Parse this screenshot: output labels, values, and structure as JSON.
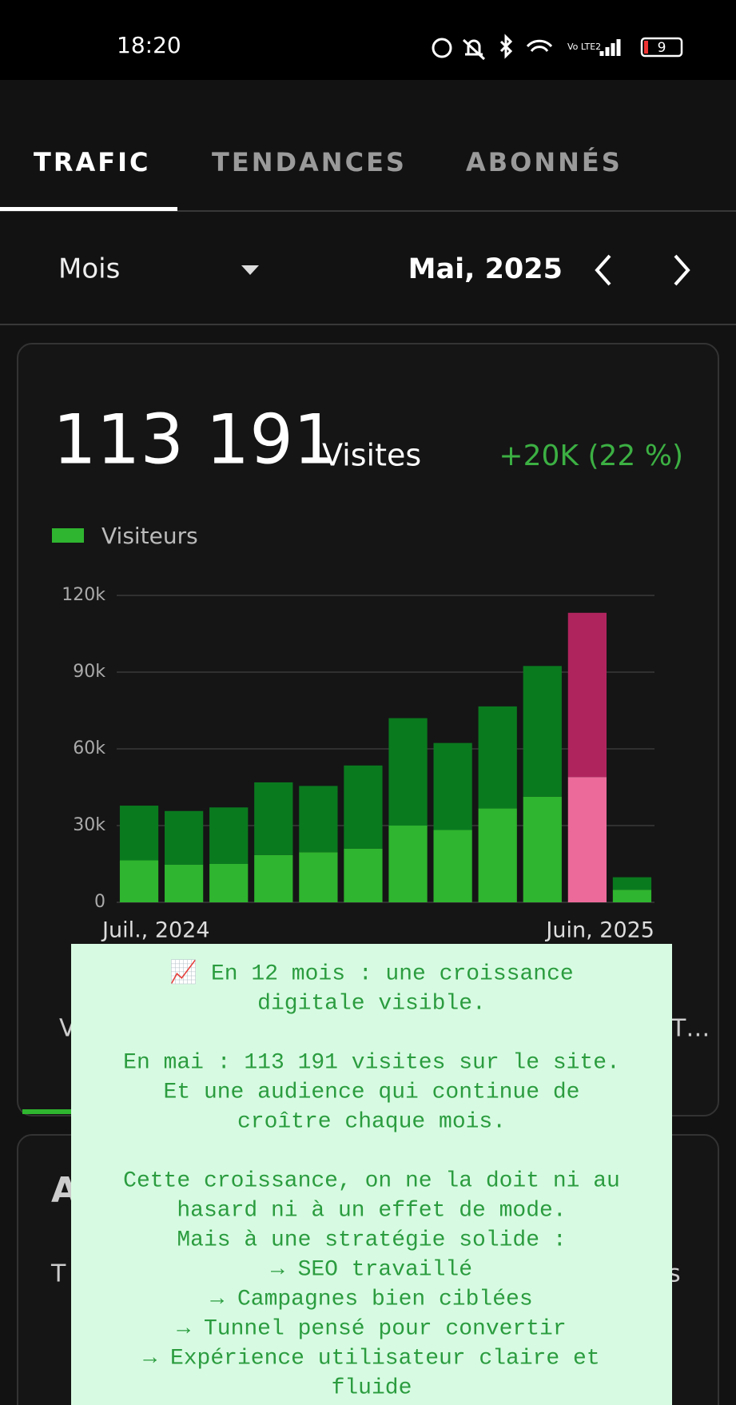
{
  "status_bar": {
    "time": "18:20",
    "battery": "9"
  },
  "tabs": [
    "TRAFIC",
    "TENDANCES",
    "ABONNÉS"
  ],
  "active_tab": 0,
  "period": {
    "unit": "Mois",
    "date": "Mai, 2025"
  },
  "summary": {
    "total": "113 191",
    "unit": "Visites",
    "change": "+20K (22 %)"
  },
  "chart_data": {
    "type": "bar",
    "stacked": true,
    "categories": [
      "Juil., 2024",
      null,
      null,
      null,
      null,
      null,
      null,
      null,
      null,
      null,
      null,
      "Juin, 2025"
    ],
    "series": [
      {
        "name": "Visiteurs",
        "color": "#2fb52f",
        "highlight_color": "#ec6a9a",
        "values": [
          16400,
          14700,
          15000,
          18500,
          19600,
          21000,
          30000,
          28300,
          36700,
          41300,
          49000,
          4900
        ]
      },
      {
        "color": "#0a7a1f",
        "highlight_color": "#b0245e",
        "values": [
          21400,
          21000,
          22100,
          28400,
          25900,
          32500,
          42000,
          34000,
          39900,
          51100,
          64191,
          4900
        ]
      }
    ],
    "highlight_index": 10,
    "ylim": [
      0,
      120000
    ],
    "yticks": [
      0,
      {
        "value": 30000,
        "label": "30k"
      },
      {
        "value": 60000,
        "label": "60k"
      },
      {
        "value": 90000,
        "label": "90k"
      },
      {
        "value": 120000,
        "label": "120k"
      }
    ],
    "grid": true
  },
  "hidden_fragments": [
    "V",
    "T…",
    "A",
    "T",
    "s"
  ],
  "overlay": {
    "paragraphs": [
      [
        "📈 En 12 mois : une croissance",
        "digitale visible."
      ],
      [
        "En mai : 113 191 visites sur le site.",
        "Et une audience qui continue de",
        "croître chaque mois."
      ],
      [
        "Cette croissance, on ne la doit ni au",
        "hasard ni à un effet de mode.",
        "Mais à une stratégie solide :",
        "→ SEO travaillé",
        "→ Campagnes bien ciblées",
        "→ Tunnel pensé pour convertir",
        "→ Expérience utilisateur claire et",
        "fluide"
      ]
    ]
  }
}
